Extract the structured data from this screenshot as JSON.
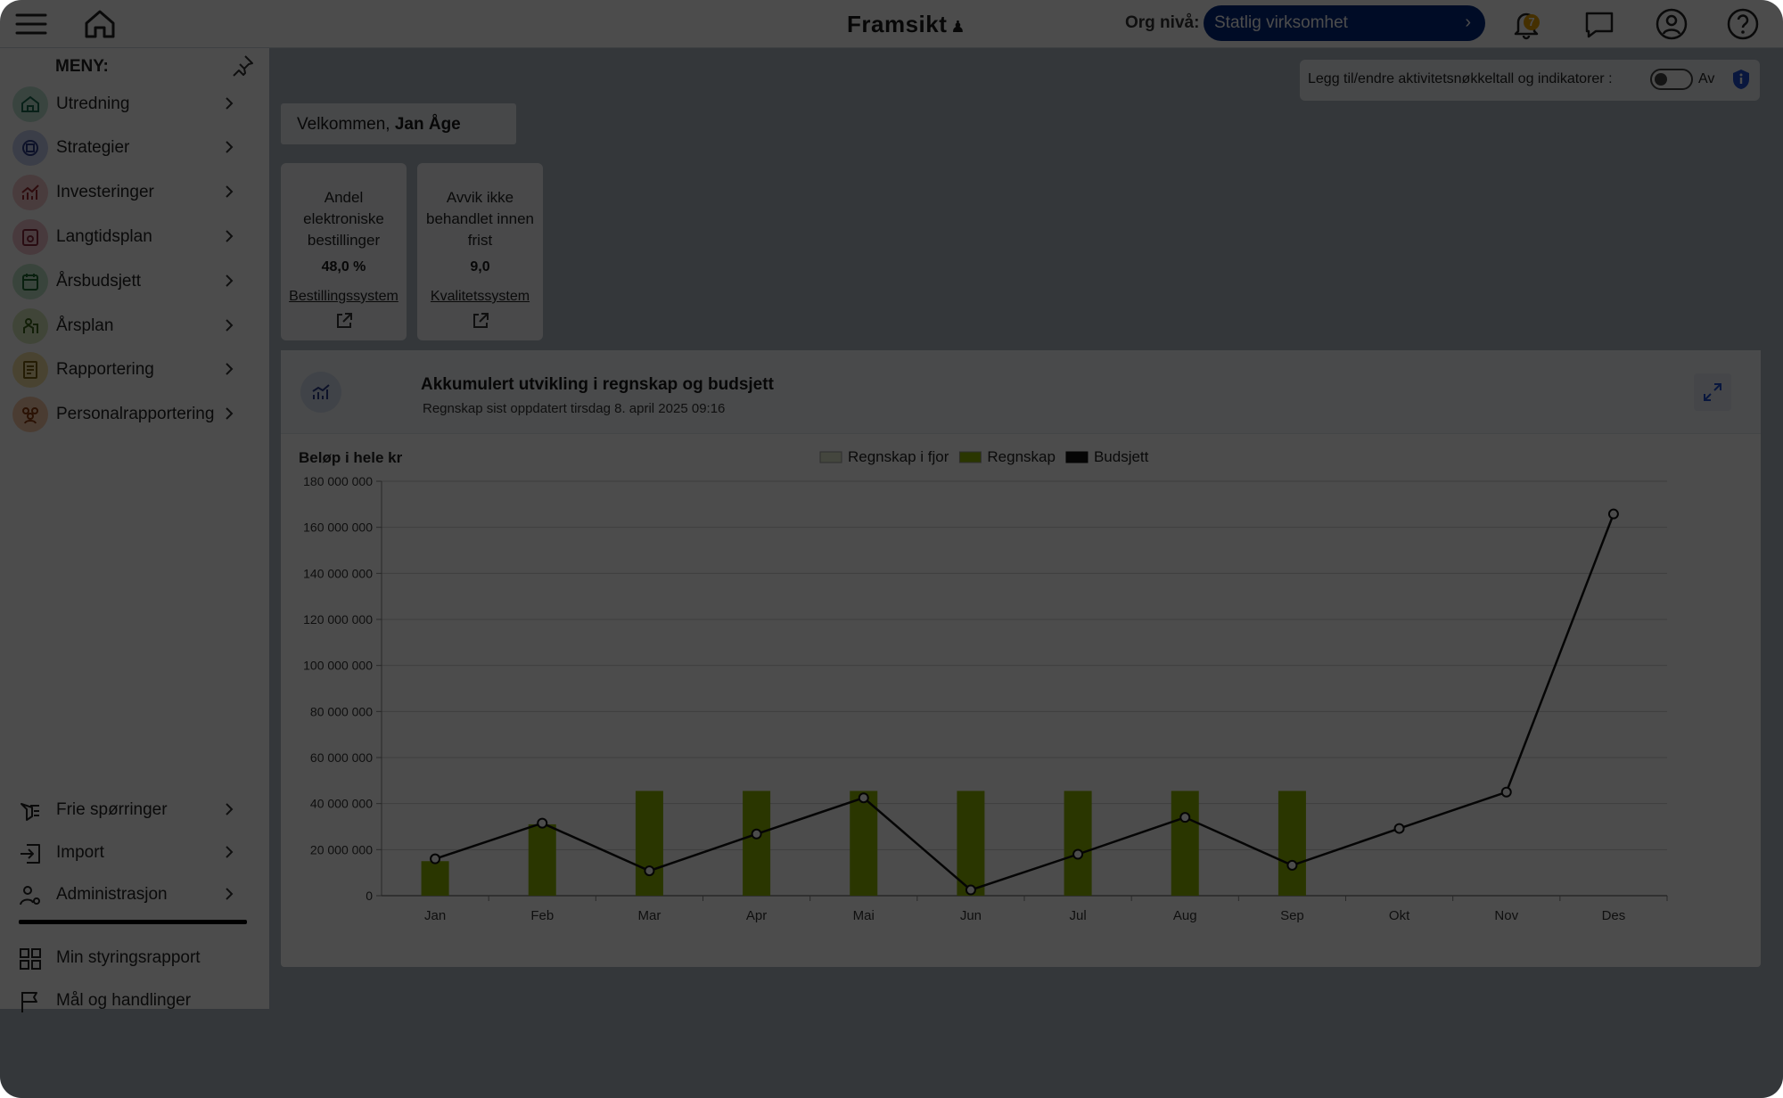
{
  "header": {
    "brand": "Framsikt",
    "org_label": "Org nivå:",
    "org_value": "Statlig virksomhet",
    "notification_count": "7",
    "icons": [
      "menu-icon",
      "home-icon",
      "bell-icon",
      "chat-icon",
      "user-icon",
      "help-icon"
    ]
  },
  "sidebar": {
    "title": "MENY:",
    "items": [
      {
        "label": "Utredning",
        "color": "#2e8b6e",
        "icon": "utredning-icon"
      },
      {
        "label": "Strategier",
        "color": "#3b4fa8",
        "icon": "strategier-icon"
      },
      {
        "label": "Investeringer",
        "color": "#c8464a",
        "icon": "investeringer-icon"
      },
      {
        "label": "Langtidsplan",
        "color": "#b0404f",
        "icon": "langtidsplan-icon"
      },
      {
        "label": "Årsbudsjett",
        "color": "#2e8b4a",
        "icon": "arsbudsjett-icon"
      },
      {
        "label": "Årsplan",
        "color": "#5f8a2e",
        "icon": "arsplan-icon"
      },
      {
        "label": "Rapportering",
        "color": "#c9a22a",
        "icon": "rapportering-icon"
      },
      {
        "label": "Personalrapportering",
        "color": "#d86a2e",
        "icon": "personal-icon"
      }
    ],
    "bottom_items": [
      {
        "label": "Frie spørringer",
        "icon": "query-icon"
      },
      {
        "label": "Import",
        "icon": "import-icon"
      },
      {
        "label": "Administrasjon",
        "icon": "admin-icon"
      }
    ],
    "quick_links": [
      {
        "label": "Min styringsrapport",
        "icon": "grid-icon"
      },
      {
        "label": "Mål og handlinger",
        "icon": "flag-icon"
      }
    ]
  },
  "toggle": {
    "label": "Legg til/endre aktivitetsnøkkeltall og indikatorer :",
    "state": "Av"
  },
  "welcome": {
    "prefix": "Velkommen,",
    "name": "Jan Åge"
  },
  "kpis": [
    {
      "title": "Andel elektroniske bestillinger",
      "value": "48,0 %",
      "link": "Bestillingssystem"
    },
    {
      "title": "Avvik ikke behandlet innen frist",
      "value": "9,0",
      "link": "Kvalitetssystem"
    }
  ],
  "chart_card": {
    "title": "Akkumulert utvikling i regnskap og budsjett",
    "subtitle": "Regnskap sist oppdatert tirsdag 8. april 2025 09:16"
  },
  "chart_data": {
    "type": "bar",
    "ylabel": "Beløp i hele kr",
    "categories": [
      "Jan",
      "Feb",
      "Mar",
      "Apr",
      "Mai",
      "Jun",
      "Jul",
      "Aug",
      "Sep",
      "Okt",
      "Nov",
      "Des"
    ],
    "ylim": [
      0,
      180000000
    ],
    "yticks": [
      {
        "value": 0,
        "label": "0"
      },
      {
        "value": 20000000,
        "label": "20 000 000"
      },
      {
        "value": 40000000,
        "label": "40 000 000"
      },
      {
        "value": 60000000,
        "label": "60 000 000"
      },
      {
        "value": 80000000,
        "label": "80 000 000"
      },
      {
        "value": 100000000,
        "label": "100 000 000"
      },
      {
        "value": 120000000,
        "label": "120 000 000"
      },
      {
        "value": 140000000,
        "label": "140 000 000"
      },
      {
        "value": 160000000,
        "label": "160 000 000"
      },
      {
        "value": 180000000,
        "label": "180 000 000"
      }
    ],
    "grid": true,
    "legend_position": "top-center",
    "series": [
      {
        "name": "Regnskap i fjor",
        "kind": "bar",
        "color": "#e3ecd0",
        "values": [
          0,
          0,
          0,
          0,
          0,
          0,
          0,
          0,
          0,
          0,
          0,
          0
        ]
      },
      {
        "name": "Regnskap",
        "kind": "bar",
        "color": "#8cb400",
        "values": [
          15000000,
          31000000,
          45500000,
          45500000,
          45500000,
          45500000,
          45500000,
          45500000,
          45500000,
          null,
          null,
          null
        ]
      },
      {
        "name": "Budsjett",
        "kind": "line",
        "color": "#111111",
        "values": [
          16000000,
          31500000,
          10800000,
          26800000,
          42500000,
          2500000,
          18000000,
          34000000,
          13200000,
          29200000,
          45000000,
          165800000
        ]
      }
    ]
  }
}
